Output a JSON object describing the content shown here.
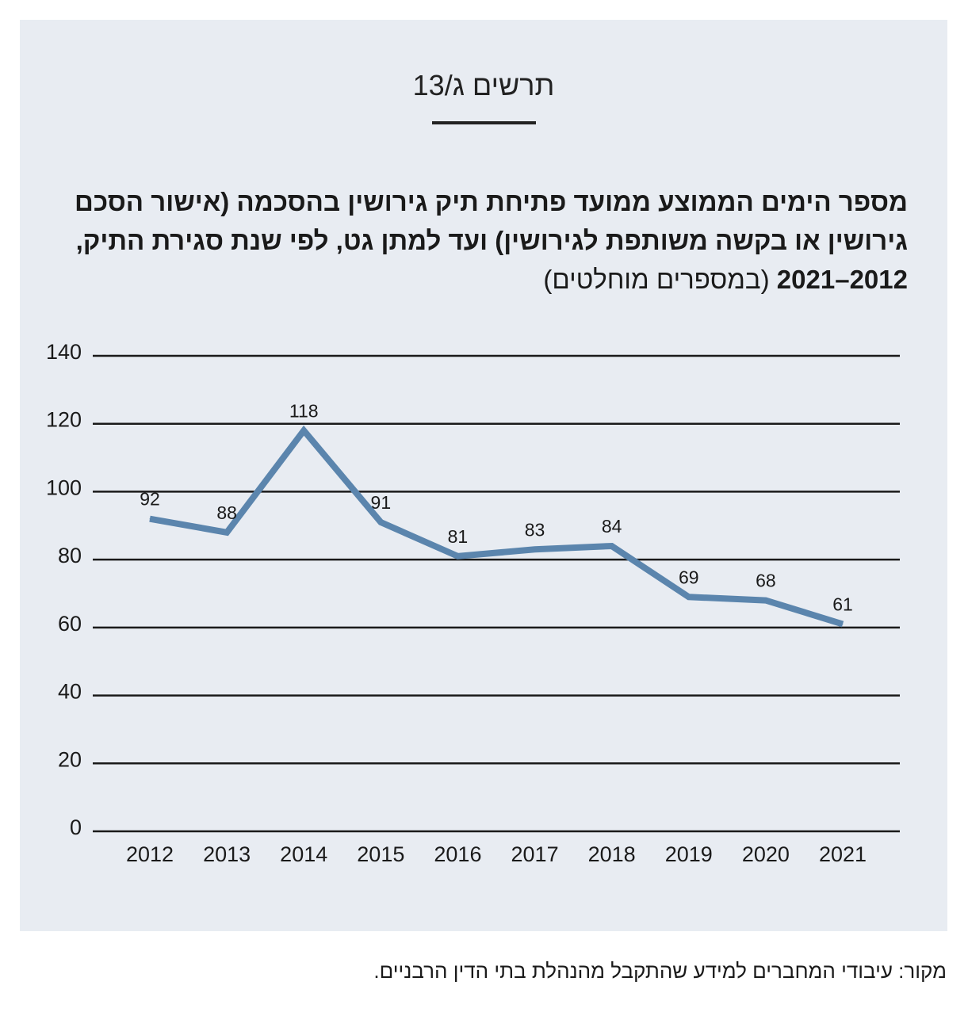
{
  "figure_label": "תרשים ג/13",
  "title_bold": "מספר הימים הממוצע ממועד פתיחת תיק גירושין בהסכמה (אישור הסכם גירושין או בקשה משותפת לגירושין) ועד למתן גט, לפי שנת סגירת התיק, 2012–2021",
  "title_light": "(במספרים מוחלטים)",
  "source": "מקור: עיבודי המחברים למידע שהתקבל מהנהלת בתי הדין הרבניים.",
  "chart_data": {
    "type": "line",
    "title": "מספר הימים הממוצע ממועד פתיחת תיק גירושין בהסכמה (אישור הסכם גירושין או בקשה משותפת לגירושין) ועד למתן גט, לפי שנת סגירת התיק, 2012–2021 (במספרים מוחלטים)",
    "xlabel": "",
    "ylabel": "",
    "categories": [
      "2012",
      "2013",
      "2014",
      "2015",
      "2016",
      "2017",
      "2018",
      "2019",
      "2020",
      "2021"
    ],
    "values": [
      92,
      88,
      118,
      91,
      81,
      83,
      84,
      69,
      68,
      61
    ],
    "ylim": [
      0,
      140
    ],
    "yticks": [
      0,
      20,
      40,
      60,
      80,
      100,
      120,
      140
    ],
    "grid": true,
    "legend": "none",
    "line_color": "#5b85ad",
    "grid_color": "#1a1a1a"
  }
}
